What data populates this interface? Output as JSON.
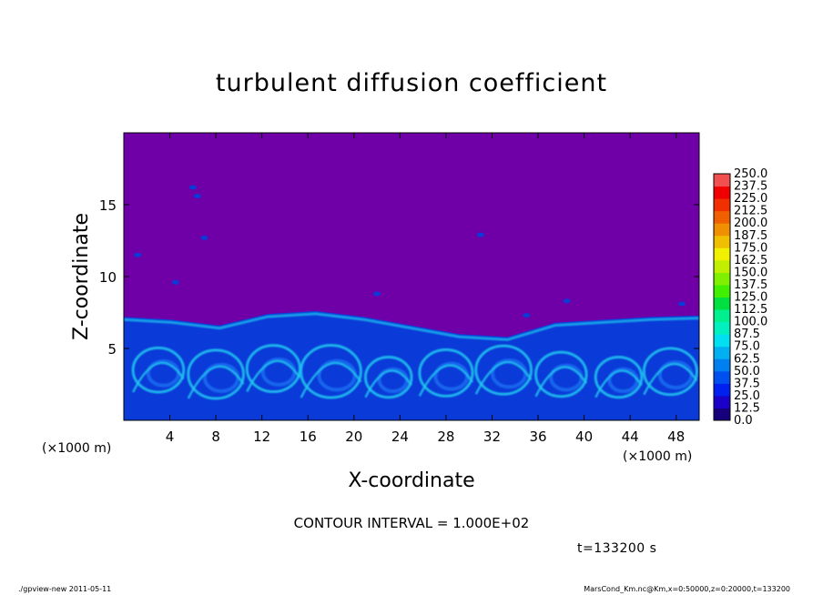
{
  "title": "turbulent diffusion coefficient",
  "contour_text": "CONTOUR INTERVAL = 1.000E+02",
  "time_text": "t=133200 s",
  "footer": {
    "left": "./gpview-new   2011-05-11",
    "right": "MarsCond_Km.nc@Km,x=0:50000,z=0:20000,t=133200"
  },
  "colors": {
    "background_field": "#6f00a8",
    "turbulent_base": "#0a3ad8",
    "turbulent_mid": "#1a6af0",
    "turbulent_high": "#20c8f0",
    "colorbar": [
      "#6f00a8",
      "#17007c",
      "#1a00c8",
      "#0020f0",
      "#0050f0",
      "#0080f0",
      "#00b0f0",
      "#00e0f0",
      "#00f0c0",
      "#00f090",
      "#00e040",
      "#40f000",
      "#80f000",
      "#c0f000",
      "#f0f000",
      "#f0c000",
      "#f09000",
      "#f06000",
      "#f03000",
      "#f00000",
      "#f05050"
    ]
  },
  "chart_data": {
    "type": "heatmap",
    "title": "turbulent diffusion coefficient",
    "xlabel": "X-coordinate",
    "ylabel": "Z-coordinate",
    "x_unit": "(×1000 m)",
    "y_unit": "(×1000 m)",
    "xlim": [
      0,
      50
    ],
    "ylim": [
      0,
      20
    ],
    "x_ticks": [
      4,
      8,
      12,
      16,
      20,
      24,
      28,
      32,
      36,
      40,
      44,
      48
    ],
    "y_ticks": [
      5,
      10,
      15
    ],
    "colorbar_levels": [
      "0.0",
      "12.5",
      "25.0",
      "37.5",
      "50.0",
      "62.5",
      "75.0",
      "87.5",
      "100.0",
      "112.5",
      "125.0",
      "137.5",
      "150.0",
      "162.5",
      "175.0",
      "187.5",
      "200.0",
      "212.5",
      "225.0",
      "237.5",
      "250.0"
    ],
    "boundary_layer_top_z": [
      7.2,
      7.0,
      6.6,
      7.4,
      7.6,
      7.2,
      6.6,
      6.0,
      5.8,
      6.8,
      7.0,
      7.2,
      7.3
    ]
  }
}
